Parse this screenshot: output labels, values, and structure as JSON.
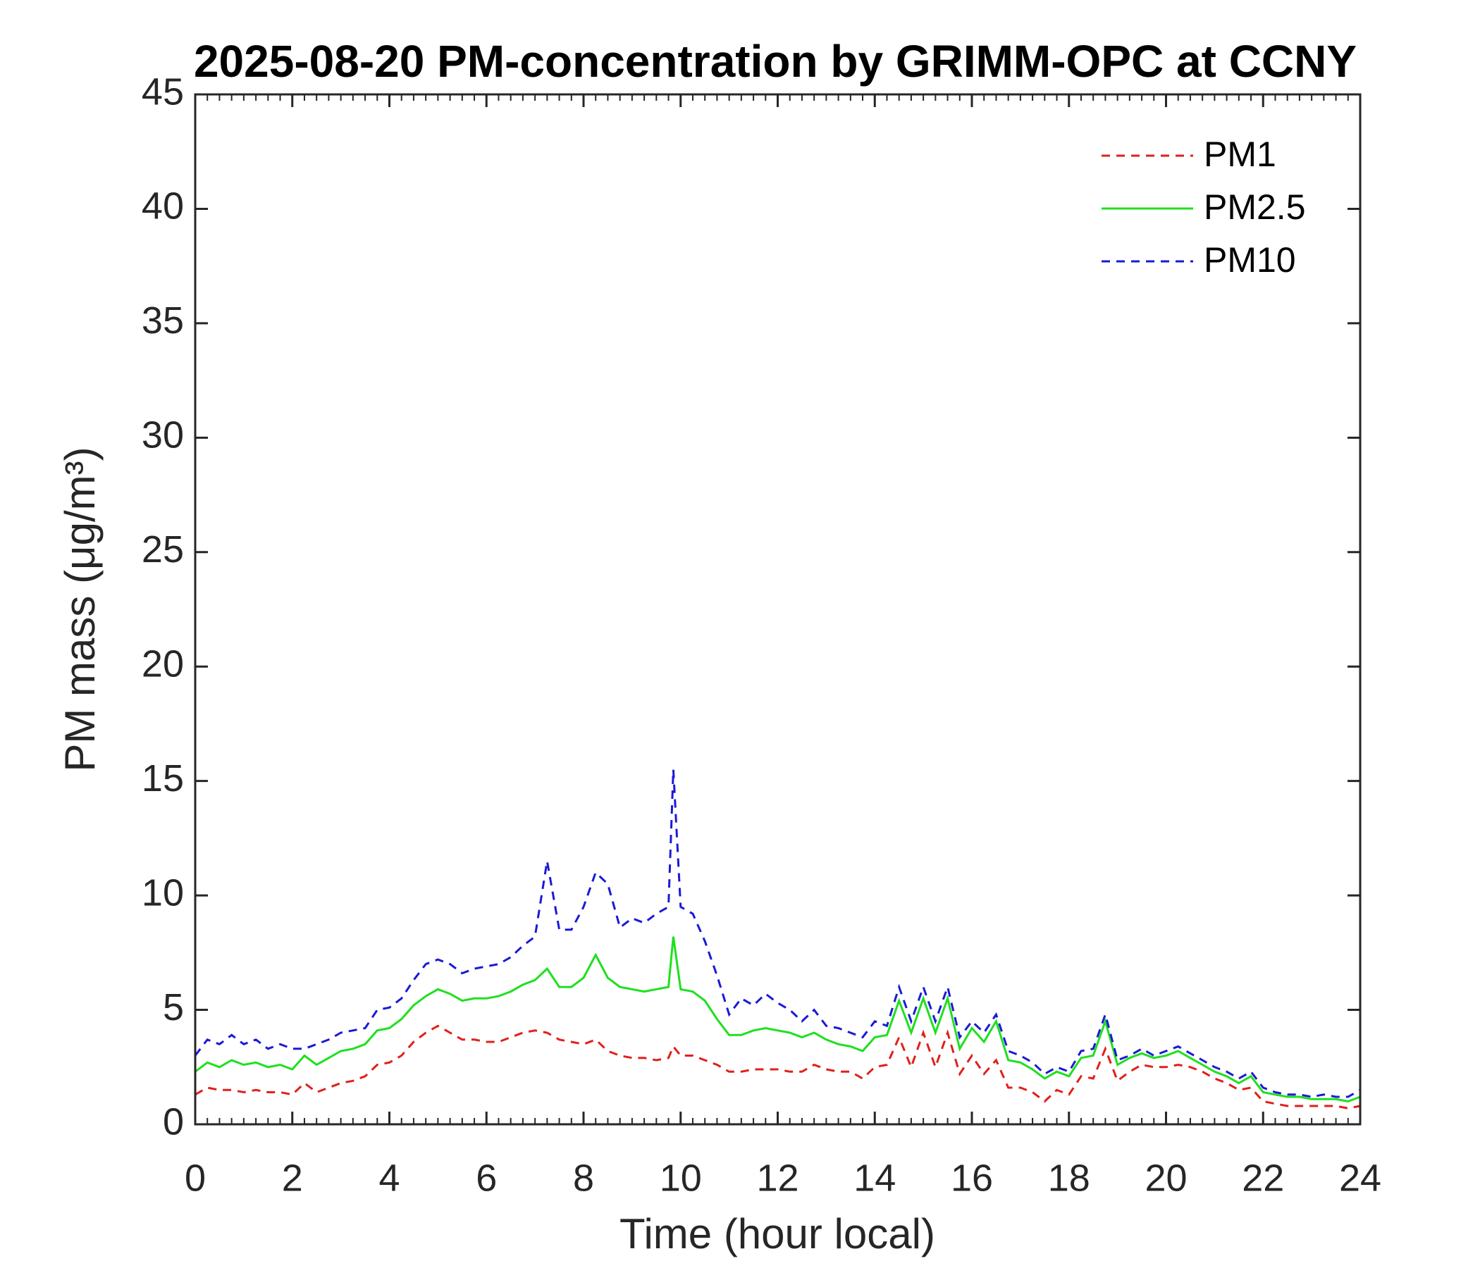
{
  "chart_data": {
    "type": "line",
    "title": "2025-08-20 PM-concentration by GRIMM-OPC at CCNY",
    "xlabel": "Time (hour local)",
    "ylabel": "PM mass (μg/m³)",
    "xlim": [
      0,
      24
    ],
    "xticks": [
      0,
      2,
      4,
      6,
      8,
      10,
      12,
      14,
      16,
      18,
      20,
      22,
      24
    ],
    "ylim": [
      0,
      45
    ],
    "yticks": [
      0,
      5,
      10,
      15,
      20,
      25,
      30,
      35,
      40,
      45
    ],
    "legend": "northeast",
    "x": [
      0,
      0.25,
      0.5,
      0.75,
      1,
      1.25,
      1.5,
      1.75,
      2,
      2.25,
      2.5,
      2.75,
      3,
      3.25,
      3.5,
      3.75,
      4,
      4.25,
      4.5,
      4.75,
      5,
      5.25,
      5.5,
      5.75,
      6,
      6.25,
      6.5,
      6.75,
      7,
      7.25,
      7.5,
      7.75,
      8,
      8.25,
      8.5,
      8.75,
      9,
      9.25,
      9.5,
      9.75,
      9.85,
      10,
      10.25,
      10.5,
      10.75,
      11,
      11.25,
      11.5,
      11.75,
      12,
      12.25,
      12.5,
      12.75,
      13,
      13.25,
      13.5,
      13.75,
      14,
      14.25,
      14.5,
      14.75,
      15,
      15.25,
      15.5,
      15.75,
      16,
      16.25,
      16.5,
      16.75,
      17,
      17.25,
      17.5,
      17.75,
      18,
      18.25,
      18.5,
      18.75,
      19,
      19.25,
      19.5,
      19.75,
      20,
      20.25,
      20.5,
      20.75,
      21,
      21.25,
      21.5,
      21.75,
      22,
      22.25,
      22.5,
      22.75,
      23,
      23.25,
      23.5,
      23.75,
      24
    ],
    "series": [
      {
        "name": "PM1",
        "color": "#e0201b",
        "style": "dashed",
        "values": [
          1.3,
          1.6,
          1.5,
          1.5,
          1.4,
          1.5,
          1.4,
          1.4,
          1.3,
          1.8,
          1.4,
          1.6,
          1.8,
          1.9,
          2.1,
          2.6,
          2.7,
          3.0,
          3.6,
          4.0,
          4.3,
          4.0,
          3.7,
          3.7,
          3.6,
          3.6,
          3.8,
          4.0,
          4.1,
          4.0,
          3.7,
          3.6,
          3.5,
          3.7,
          3.2,
          3.0,
          2.9,
          2.9,
          2.8,
          2.9,
          3.4,
          3.0,
          3.0,
          2.8,
          2.6,
          2.3,
          2.3,
          2.4,
          2.4,
          2.4,
          2.3,
          2.3,
          2.6,
          2.4,
          2.3,
          2.3,
          2.0,
          2.5,
          2.6,
          3.8,
          2.5,
          4.0,
          2.5,
          4.0,
          2.2,
          3.0,
          2.2,
          2.8,
          1.6,
          1.6,
          1.4,
          1.0,
          1.5,
          1.3,
          2.1,
          2.0,
          3.3,
          1.9,
          2.3,
          2.6,
          2.5,
          2.5,
          2.6,
          2.5,
          2.3,
          2.0,
          1.8,
          1.5,
          1.6,
          1.0,
          0.9,
          0.8,
          0.8,
          0.8,
          0.8,
          0.8,
          0.7,
          0.8
        ]
      },
      {
        "name": "PM2.5",
        "color": "#1ee01e",
        "style": "solid",
        "values": [
          2.3,
          2.7,
          2.5,
          2.8,
          2.6,
          2.7,
          2.5,
          2.6,
          2.4,
          3.0,
          2.6,
          2.9,
          3.2,
          3.3,
          3.5,
          4.1,
          4.2,
          4.6,
          5.2,
          5.6,
          5.9,
          5.7,
          5.4,
          5.5,
          5.5,
          5.6,
          5.8,
          6.1,
          6.3,
          6.8,
          6.0,
          6.0,
          6.4,
          7.4,
          6.4,
          6.0,
          5.9,
          5.8,
          5.9,
          6.0,
          8.2,
          5.9,
          5.8,
          5.4,
          4.6,
          3.9,
          3.9,
          4.1,
          4.2,
          4.1,
          4.0,
          3.8,
          4.0,
          3.7,
          3.5,
          3.4,
          3.2,
          3.8,
          3.9,
          5.4,
          4.0,
          5.5,
          4.0,
          5.5,
          3.3,
          4.2,
          3.6,
          4.5,
          2.8,
          2.7,
          2.4,
          2.0,
          2.3,
          2.1,
          2.9,
          3.0,
          4.5,
          2.6,
          2.9,
          3.1,
          2.9,
          3.0,
          3.2,
          2.9,
          2.6,
          2.3,
          2.1,
          1.8,
          2.1,
          1.4,
          1.3,
          1.2,
          1.2,
          1.1,
          1.1,
          1.1,
          1.0,
          1.2
        ]
      },
      {
        "name": "PM10",
        "color": "#1a1ad6",
        "style": "dashed",
        "values": [
          3.0,
          3.7,
          3.5,
          3.9,
          3.5,
          3.7,
          3.3,
          3.5,
          3.3,
          3.3,
          3.5,
          3.7,
          4.0,
          4.1,
          4.2,
          5.0,
          5.1,
          5.5,
          6.3,
          7.0,
          7.2,
          7.0,
          6.6,
          6.8,
          6.9,
          7.0,
          7.3,
          7.8,
          8.2,
          11.5,
          8.5,
          8.5,
          9.5,
          11.0,
          10.5,
          8.6,
          9.0,
          8.8,
          9.2,
          9.5,
          15.5,
          9.5,
          9.2,
          8.0,
          6.5,
          4.8,
          5.5,
          5.2,
          5.7,
          5.3,
          5.0,
          4.5,
          5.0,
          4.3,
          4.2,
          4.0,
          3.8,
          4.5,
          4.3,
          6.0,
          4.5,
          6.0,
          4.5,
          6.0,
          3.8,
          4.5,
          4.0,
          4.8,
          3.2,
          3.0,
          2.7,
          2.2,
          2.5,
          2.3,
          3.2,
          3.3,
          4.8,
          2.8,
          3.0,
          3.3,
          3.0,
          3.2,
          3.4,
          3.1,
          2.8,
          2.5,
          2.3,
          2.0,
          2.3,
          1.6,
          1.4,
          1.3,
          1.3,
          1.2,
          1.3,
          1.2,
          1.2,
          1.5
        ]
      }
    ]
  }
}
